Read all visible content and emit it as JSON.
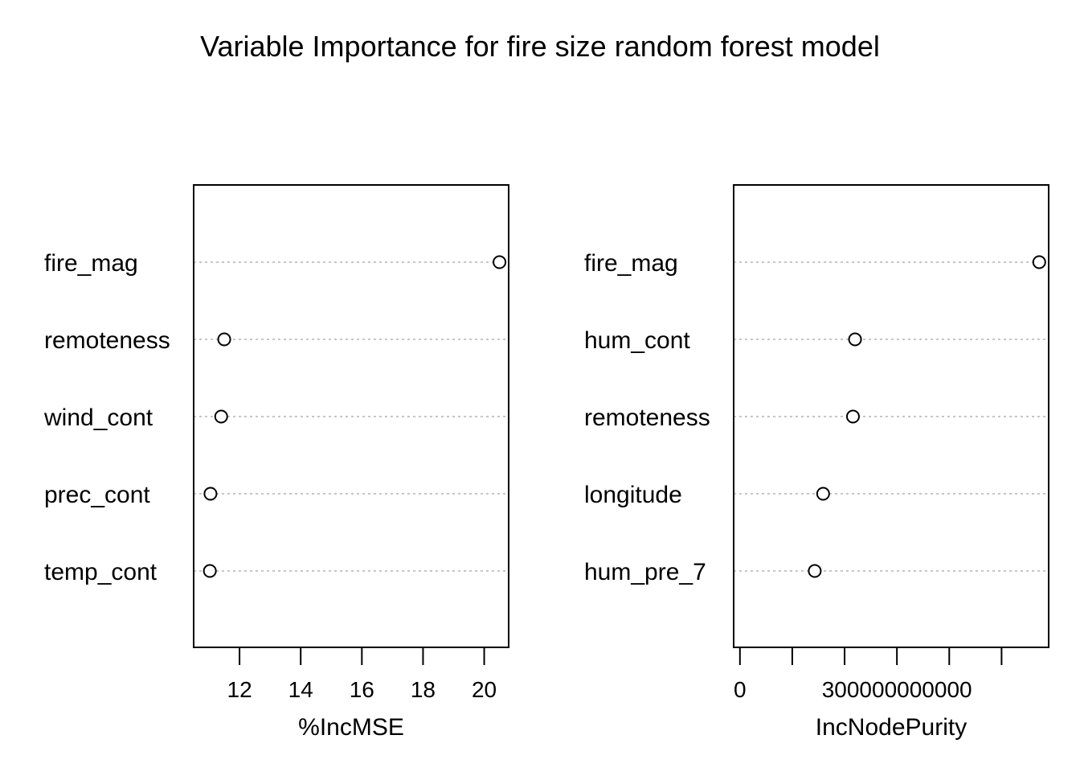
{
  "title": "Variable Importance for fire size random forest model",
  "chart_data": [
    {
      "type": "dotchart",
      "xlabel": "%IncMSE",
      "xlim": [
        10.5,
        20.8
      ],
      "ticks": [
        12,
        14,
        16,
        18,
        20
      ],
      "tick_labels": [
        "12",
        "14",
        "16",
        "18",
        "20"
      ],
      "categories": [
        "fire_mag",
        "remoteness",
        "wind_cont",
        "prec_cont",
        "temp_cont"
      ],
      "values": [
        20.5,
        11.5,
        11.4,
        11.05,
        11.03
      ],
      "grid": "dotted horizontal guide lines"
    },
    {
      "type": "dotchart",
      "xlabel": "IncNodePurity",
      "xlim": [
        -12000000000,
        590000000000
      ],
      "ticks": [
        0,
        100000000000,
        200000000000,
        300000000000,
        400000000000,
        500000000000
      ],
      "tick_labels": [
        "0",
        "",
        "",
        "300000000000",
        "",
        ""
      ],
      "categories": [
        "fire_mag",
        "hum_cont",
        "remoteness",
        "longitude",
        "hum_pre_7"
      ],
      "values": [
        572000000000,
        220000000000,
        216000000000,
        159000000000,
        143000000000
      ],
      "grid": "dotted horizontal guide lines"
    }
  ]
}
